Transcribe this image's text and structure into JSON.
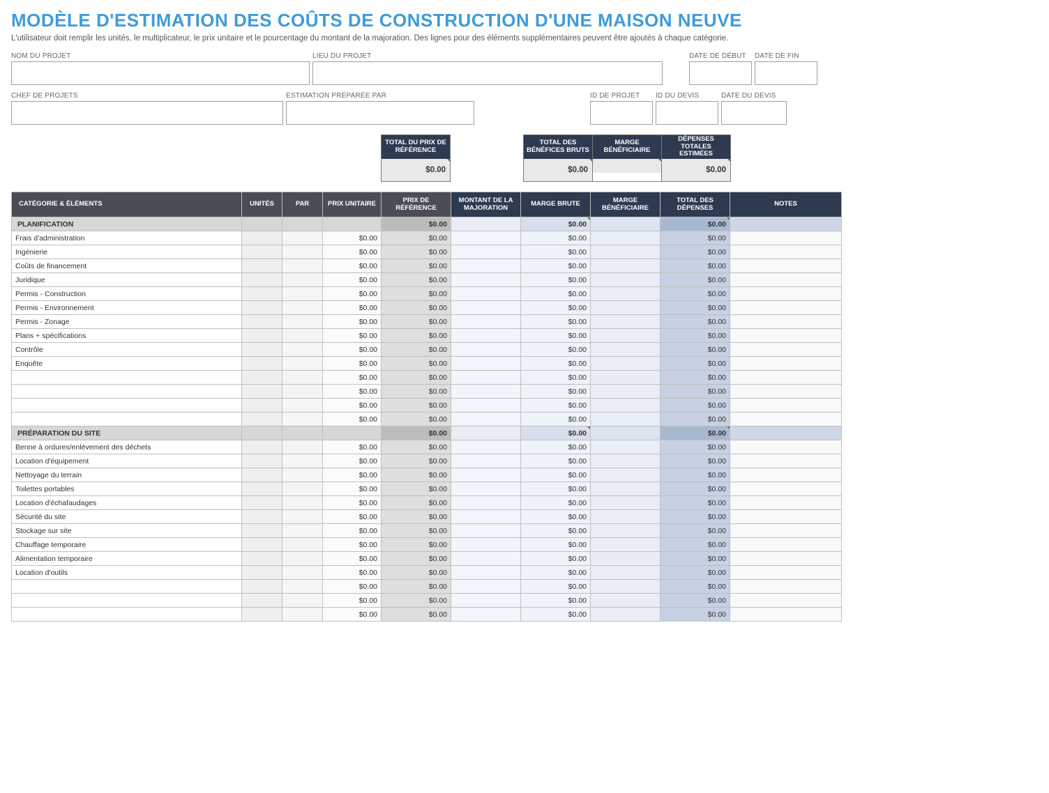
{
  "title": "MODÈLE D'ESTIMATION DES COÛTS DE CONSTRUCTION D'UNE MAISON NEUVE",
  "subtitle": "L'utilisateur doit remplir les unités, le multiplicateur, le prix unitaire et le pourcentage du montant de la majoration.  Des lignes pour des éléments supplémentaires peuvent être ajoutés à chaque catégorie.",
  "colors": {
    "title": "#3e9bdc",
    "header_dark_grey": "#4a4d55",
    "header_dark_blue": "#2d3a50",
    "row_border": "#bfbfbf",
    "col_cat_bg": "#ffffff",
    "col_unit_bg": "#efefef",
    "col_par_bg": "#f5f5f5",
    "col_pu_bg": "#fbfbfb",
    "col_pr_bg": "#dedede",
    "col_mm_bg": "#f2f5fb",
    "col_mb_bg": "#eef2f9",
    "col_mben_bg": "#e9eef6",
    "col_tdp_bg": "#c7d1e3",
    "col_notes_bg": "#f8f9fb",
    "catrow_bg": "#d7d7d7",
    "catrow_pr_bg": "#bcbcbc",
    "catrow_mb_bg": "#d7dfec",
    "catrow_tdp_bg": "#a9b8d1",
    "sum_val_bg": "#e9e9e9",
    "corner_marker": "#3a8a3a"
  },
  "meta": {
    "row1": {
      "project_name_label": "NOM DU PROJET",
      "project_name_value": "",
      "project_location_label": "LIEU DU PROJET",
      "project_location_value": "",
      "start_date_label": "DATE DE DÉBUT",
      "start_date_value": "",
      "end_date_label": "DATE DE FIN",
      "end_date_value": ""
    },
    "row2": {
      "pm_label": "CHEF DE PROJETS",
      "pm_value": "",
      "prepared_by_label": "ESTIMATION PRÉPARÉE PAR",
      "prepared_by_value": "",
      "project_id_label": "ID DE PROJET",
      "project_id_value": "",
      "quote_id_label": "ID DU DEVIS",
      "quote_id_value": "",
      "quote_date_label": "DATE DU DEVIS",
      "quote_date_value": ""
    }
  },
  "summary": {
    "box1_label": "TOTAL DU PRIX DE RÉFÉRENCE",
    "box1_value": "$0.00",
    "box2_label": "TOTAL DES BÉNÉFICES BRUTS",
    "box2_value": "$0.00",
    "box3_label": "MARGE BÉNÉFICIAIRE",
    "box3_value": "",
    "box4_label": "DÉPENSES TOTALES ESTIMÉES",
    "box4_value": "$0.00"
  },
  "table": {
    "columns": [
      "CATÉGORIE & ÉLÉMENTS",
      "UNITÉS",
      "PAR",
      "PRIX UNITAIRE",
      "PRIX DE RÉFÉRENCE",
      "MONTANT DE LA MAJORATION",
      "MARGE BRUTE",
      "MARGE BÉNÉFICIAIRE",
      "TOTAL DES DÉPENSES",
      "NOTES"
    ],
    "sections": [
      {
        "name": "PLANIFICATION",
        "subtotal": {
          "pr": "$0.00",
          "mb": "$0.00",
          "tdp": "$0.00"
        },
        "items": [
          "Frais d'administration",
          "Ingénierie",
          "Coûts de financement",
          "Juridique",
          "Permis - Construction",
          "Permis - Environnement",
          "Permis - Zonage",
          "Plans + spécifications",
          "Contrôle",
          "Enquête",
          "",
          "",
          "",
          ""
        ]
      },
      {
        "name": "PRÉPARATION DU SITE",
        "subtotal": {
          "pr": "$0.00",
          "mb": "$0.00",
          "tdp": "$0.00"
        },
        "items": [
          "Benne à ordures/enlèvement des déchets",
          "Location d'équipement",
          "Nettoyage du terrain",
          "Toilettes portables",
          "Location d'échafaudages",
          "Sécurité du site",
          "Stockage sur site",
          "Chauffage temporaire",
          "Alimentation temporaire",
          "Location d'outils",
          "",
          "",
          ""
        ]
      }
    ],
    "default_cell": {
      "pu": "$0.00",
      "pr": "$0.00",
      "mb": "$0.00",
      "tdp": "$0.00"
    }
  }
}
